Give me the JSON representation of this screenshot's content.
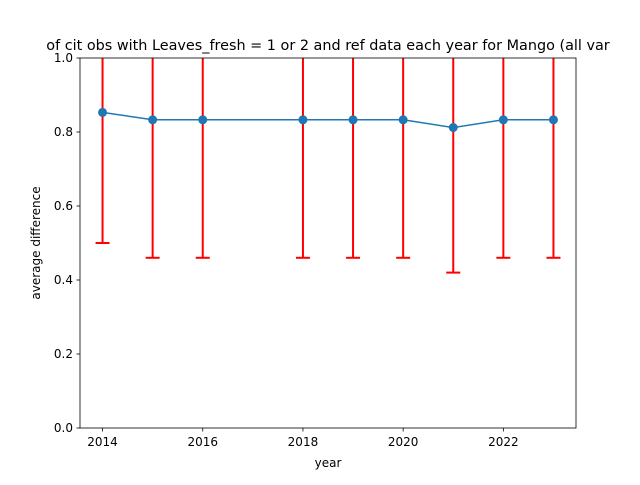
{
  "chart_data": {
    "type": "line",
    "title": "of cit obs with Leaves_fresh = 1 or 2 and ref data each year for Mango (all var",
    "xlabel": "year",
    "ylabel": "average difference",
    "xlim": [
      2013.55,
      2023.45
    ],
    "ylim": [
      0.0,
      1.0
    ],
    "x_ticks": [
      2014,
      2016,
      2018,
      2020,
      2022
    ],
    "y_ticks": [
      0.0,
      0.2,
      0.4,
      0.6,
      0.8,
      1.0
    ],
    "x_tick_labels": [
      "2014",
      "2016",
      "2018",
      "2020",
      "2022"
    ],
    "y_tick_labels": [
      "0.0",
      "0.2",
      "0.4",
      "0.6",
      "0.8",
      "1.0"
    ],
    "grid": false,
    "series": [
      {
        "x": [
          2014,
          2015,
          2016,
          2018,
          2019,
          2020,
          2021,
          2022,
          2023
        ],
        "y": [
          0.853,
          0.833,
          0.833,
          0.833,
          0.833,
          0.833,
          0.812,
          0.833,
          0.833
        ],
        "error_lower": [
          0.5,
          0.46,
          0.46,
          0.46,
          0.46,
          0.46,
          0.42,
          0.46,
          0.46
        ],
        "error_upper": [
          1.2,
          1.2,
          1.2,
          1.2,
          1.2,
          1.2,
          1.2,
          1.2,
          1.2
        ]
      }
    ],
    "colors": {
      "line": "#1f77b4",
      "errorbar": "#ff0000",
      "axes": "#000000"
    }
  }
}
